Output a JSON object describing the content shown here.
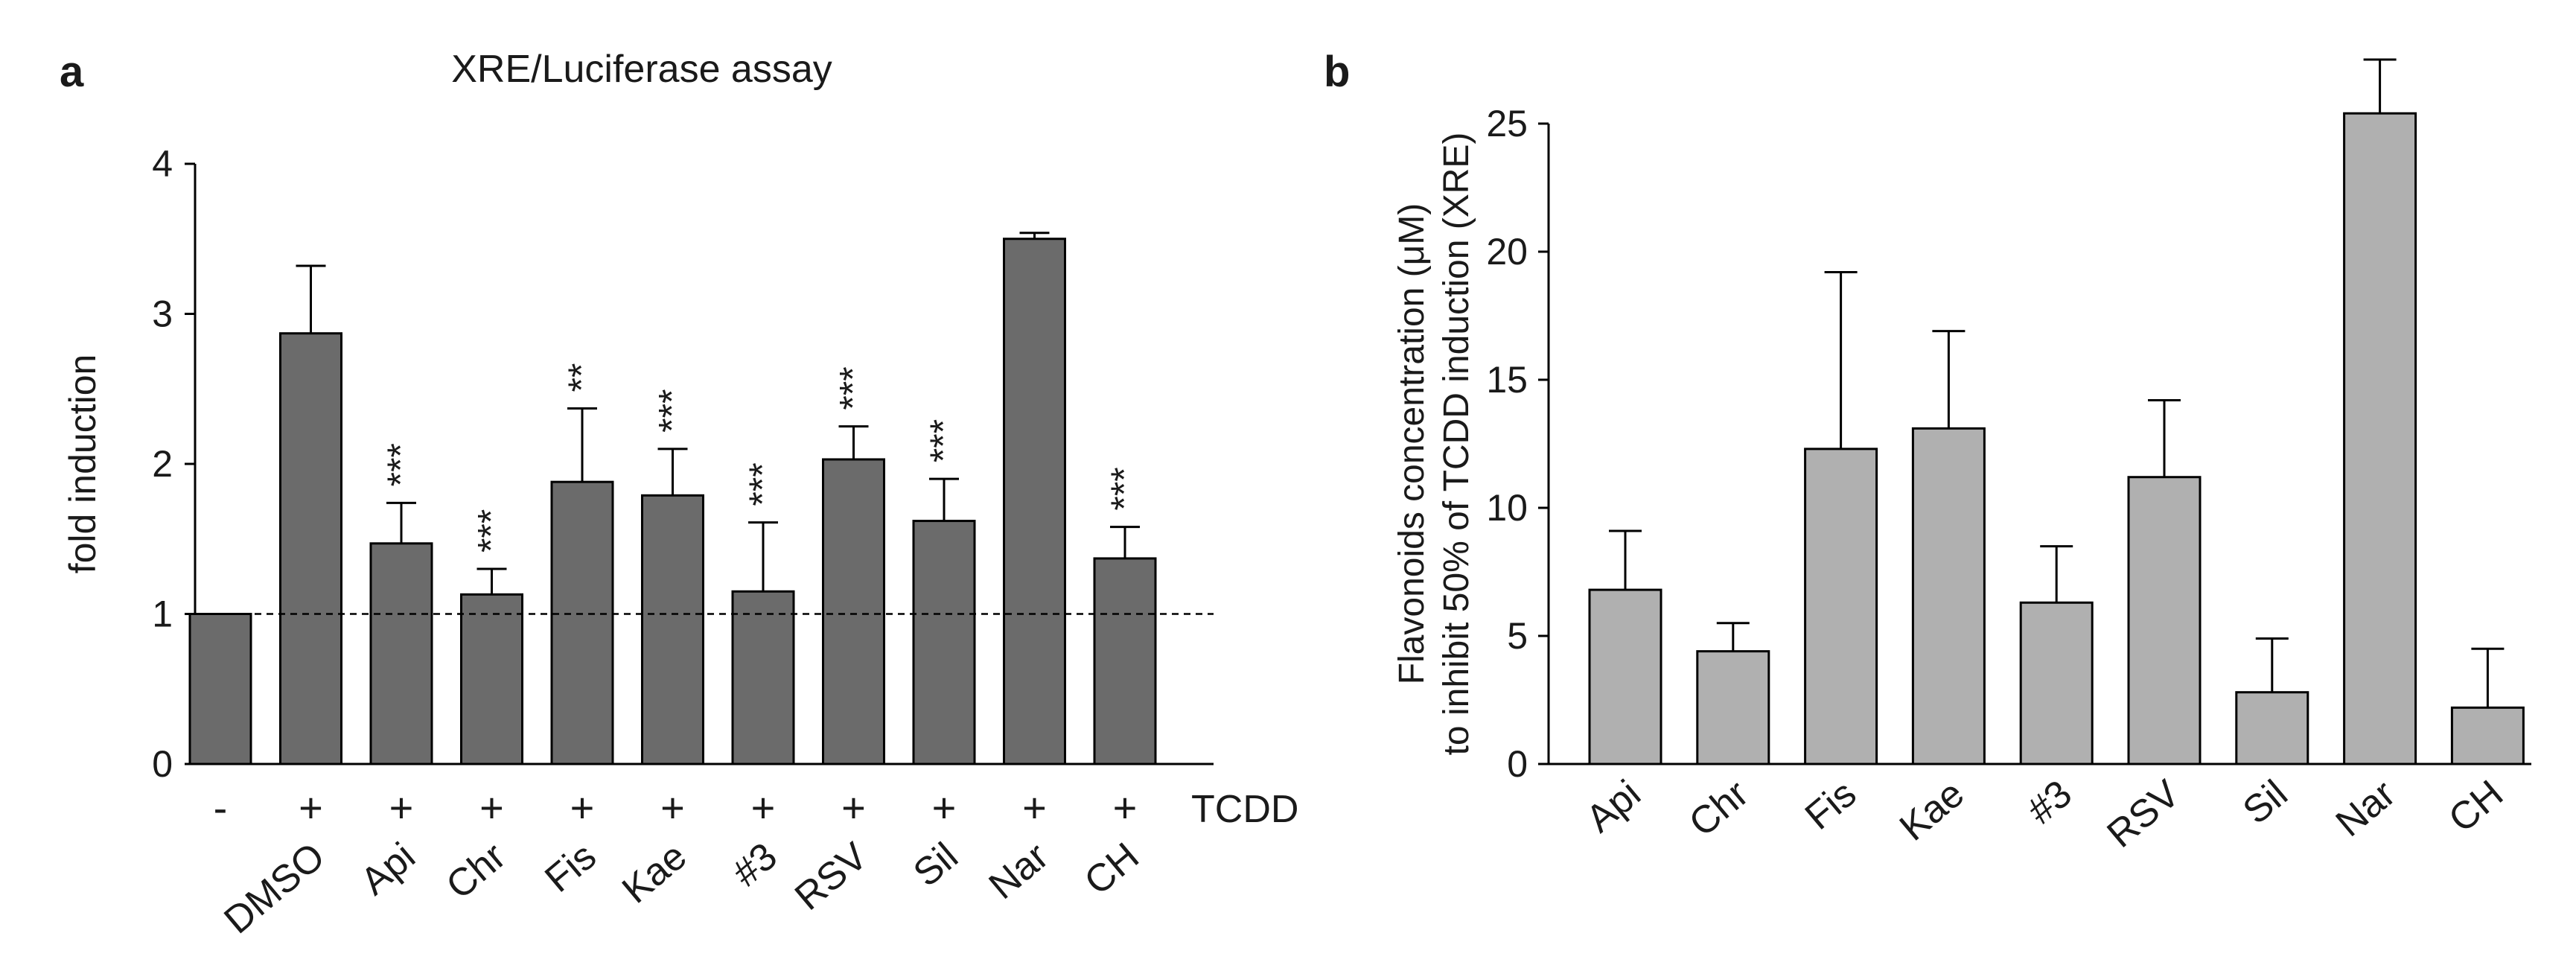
{
  "chart_data": [
    {
      "panel": "a",
      "type": "bar",
      "title": "XRE/Luciferase assay",
      "ylabel": "fold induction",
      "xlabel": "",
      "ylim": [
        0,
        4
      ],
      "yticks": [
        0,
        1,
        2,
        3,
        4
      ],
      "categories": [
        "",
        "DMSO",
        "Api",
        "Chr",
        "Fis",
        "Kae",
        "#3",
        "RSV",
        "Sil",
        "Nar",
        "CH"
      ],
      "treatment_label": "TCDD",
      "treatment_signs": [
        "-",
        "+",
        "+",
        "+",
        "+",
        "+",
        "+",
        "+",
        "+",
        "+",
        "+"
      ],
      "values": [
        1.0,
        2.87,
        1.47,
        1.13,
        1.88,
        1.79,
        1.15,
        2.03,
        1.62,
        3.5,
        1.37
      ],
      "errors": [
        0.0,
        0.45,
        0.27,
        0.17,
        0.49,
        0.31,
        0.46,
        0.22,
        0.28,
        0.04,
        0.21
      ],
      "significance": [
        "",
        "",
        "***",
        "***",
        "**",
        "***",
        "***",
        "***",
        "***",
        "",
        "***"
      ],
      "reference_line": 1,
      "bar_color": "#6b6b6b"
    },
    {
      "panel": "b",
      "type": "bar",
      "title": "",
      "ylabel_line1": "Flavonoids concentration (μM)",
      "ylabel_line2": "to inhibit 50% of TCDD induction (XRE)",
      "xlabel": "",
      "ylim": [
        0,
        25
      ],
      "yticks": [
        0,
        5,
        10,
        15,
        20,
        25
      ],
      "categories": [
        "Api",
        "Chr",
        "Fis",
        "Kae",
        "#3",
        "RSV",
        "Sil",
        "Nar",
        "CH"
      ],
      "values": [
        6.8,
        4.4,
        12.3,
        13.1,
        6.3,
        11.2,
        2.8,
        25.4,
        2.2
      ],
      "errors": [
        2.3,
        1.1,
        6.9,
        3.8,
        2.2,
        3.0,
        2.1,
        2.1,
        2.3
      ],
      "bar_color": "#b0b0b0"
    }
  ]
}
